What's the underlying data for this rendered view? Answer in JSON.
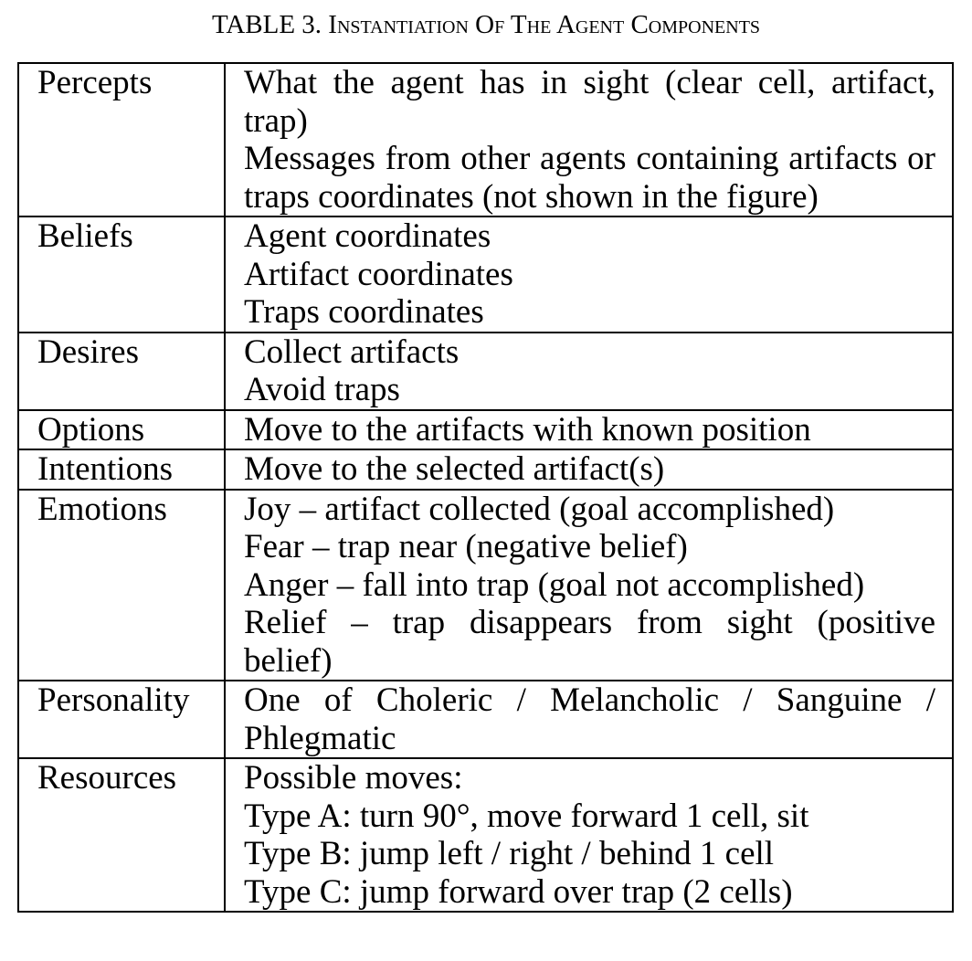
{
  "caption": {
    "prefix": "TABLE 3.",
    "title": "Instantiation Of The Agent Components"
  },
  "table": {
    "rows": [
      {
        "label": "Percepts",
        "lines": [
          "What the agent has in sight (clear cell, artifact, trap)",
          "Messages from other agents containing artifacts or traps coordinates (not shown in the figure)"
        ]
      },
      {
        "label": "Beliefs",
        "lines": [
          "Agent coordinates",
          "Artifact coordinates",
          "Traps coordinates"
        ]
      },
      {
        "label": "Desires",
        "lines": [
          "Collect artifacts",
          "Avoid traps"
        ]
      },
      {
        "label": "Options",
        "lines": [
          "Move to the artifacts with known position"
        ]
      },
      {
        "label": "Intentions",
        "lines": [
          "Move to the selected artifact(s)"
        ]
      },
      {
        "label": "Emotions",
        "lines": [
          "Joy – artifact collected (goal accomplished)",
          "Fear – trap near (negative belief)",
          "Anger – fall into trap (goal not accomplished)",
          "Relief – trap disappears from sight (positive belief)"
        ]
      },
      {
        "label": "Personality",
        "lines": [
          "One of Choleric / Melancholic / Sanguine / Phlegmatic"
        ]
      },
      {
        "label": "Resources",
        "lines": [
          "Possible moves:",
          "Type A: turn 90°, move forward 1 cell, sit",
          "Type B: jump left / right / behind 1 cell",
          "Type C: jump forward  over trap (2 cells)"
        ]
      }
    ]
  }
}
